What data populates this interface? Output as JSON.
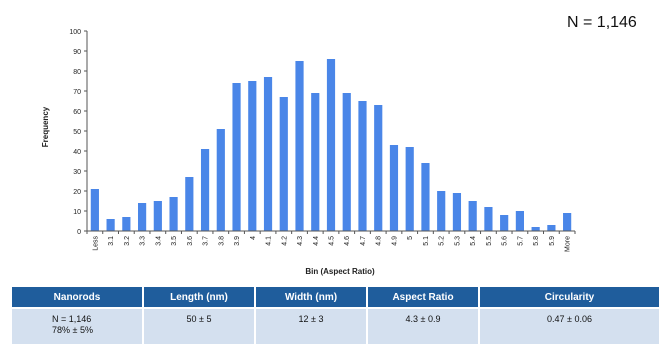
{
  "n_label": "N = 1,146",
  "chart_data": {
    "type": "bar",
    "xlabel": "Bin (Aspect Ratio)",
    "ylabel": "Frequency",
    "ylim": [
      0,
      100
    ],
    "yticks": [
      0,
      10,
      20,
      30,
      40,
      50,
      60,
      70,
      80,
      90,
      100
    ],
    "grid": false,
    "bar_color": "#4a86e8",
    "categories": [
      "Less",
      "3.1",
      "3.2",
      "3.3",
      "3.4",
      "3.5",
      "3.6",
      "3.7",
      "3.8",
      "3.9",
      "4",
      "4.1",
      "4.2",
      "4.3",
      "4.4",
      "4.5",
      "4.6",
      "4.7",
      "4.8",
      "4.9",
      "5",
      "5.1",
      "5.2",
      "5.3",
      "5.4",
      "5.5",
      "5.6",
      "5.7",
      "5.8",
      "5.9",
      "More"
    ],
    "values": [
      21,
      6,
      7,
      14,
      15,
      17,
      27,
      41,
      51,
      74,
      75,
      77,
      67,
      85,
      69,
      86,
      69,
      65,
      63,
      43,
      42,
      34,
      20,
      19,
      15,
      12,
      8,
      10,
      2,
      3,
      9
    ]
  },
  "table": {
    "headers": [
      "Nanorods",
      "Length (nm)",
      "Width (nm)",
      "Aspect Ratio",
      "Circularity"
    ],
    "row": {
      "nanorods_line1": "N = 1,146",
      "nanorods_line2": "78% ± 5%",
      "length": "50 ± 5",
      "width": "12 ± 3",
      "aspect_ratio": "4.3 ± 0.9",
      "circularity": "0.47 ± 0.06"
    }
  }
}
